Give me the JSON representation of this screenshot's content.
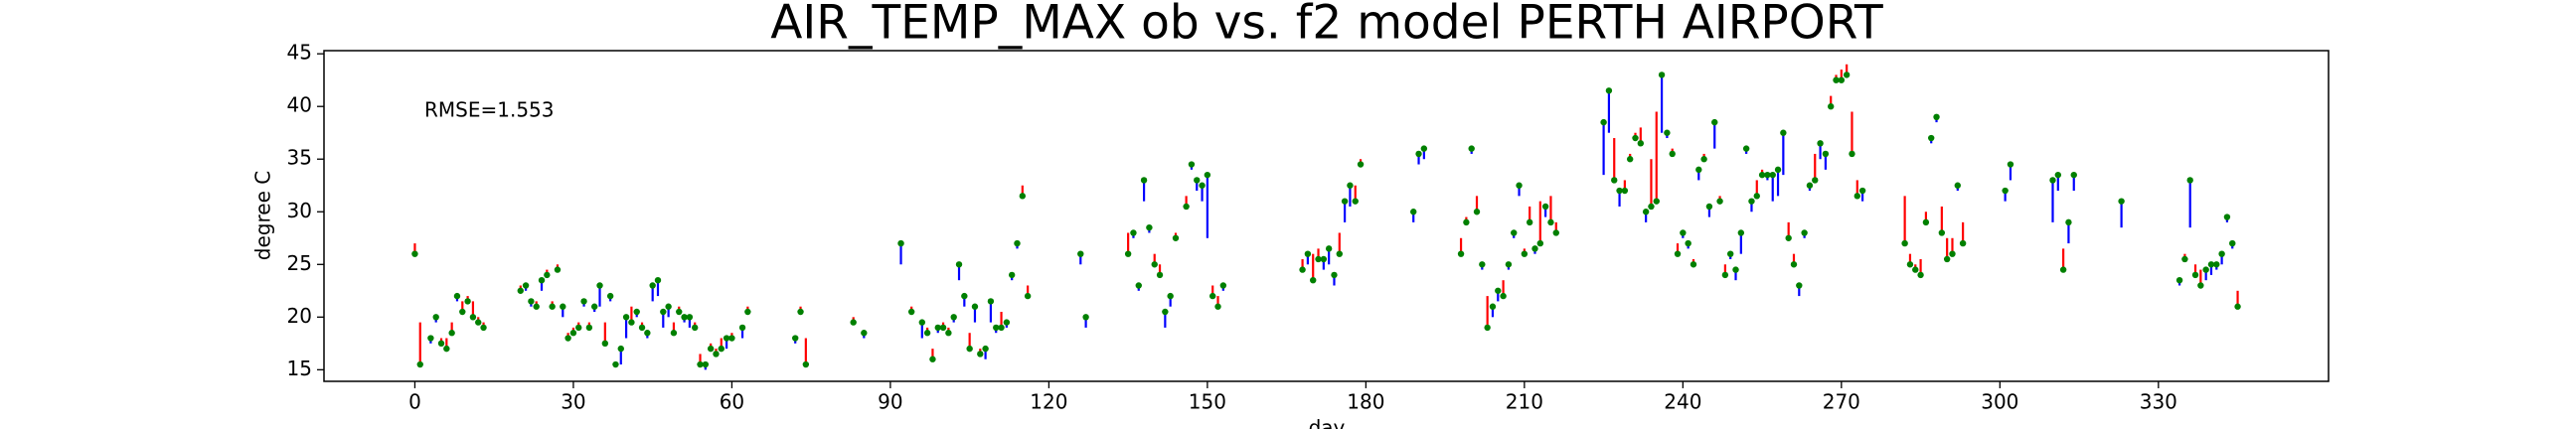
{
  "chart_data": {
    "type": "ob-vs-model",
    "title": "AIR_TEMP_MAX  ob vs. f2  model  PERTH AIRPORT",
    "xlabel": "day",
    "ylabel": "degree C",
    "annotation": "RMSE=1.553",
    "x": [
      0,
      1,
      3,
      4,
      5,
      6,
      7,
      8,
      9,
      10,
      11,
      12,
      13,
      20,
      21,
      22,
      23,
      24,
      25,
      26,
      27,
      28,
      29,
      30,
      31,
      32,
      33,
      34,
      35,
      36,
      37,
      38,
      39,
      40,
      41,
      42,
      43,
      44,
      45,
      46,
      47,
      48,
      49,
      50,
      51,
      52,
      53,
      54,
      55,
      56,
      57,
      58,
      59,
      60,
      62,
      63,
      72,
      73,
      74,
      83,
      85,
      92,
      94,
      96,
      97,
      98,
      99,
      100,
      101,
      102,
      103,
      104,
      105,
      106,
      107,
      108,
      109,
      110,
      111,
      112,
      113,
      114,
      115,
      116,
      126,
      127,
      135,
      136,
      137,
      138,
      139,
      140,
      141,
      142,
      143,
      144,
      146,
      147,
      148,
      149,
      150,
      151,
      152,
      153,
      168,
      169,
      170,
      171,
      172,
      173,
      174,
      175,
      176,
      177,
      178,
      179,
      189,
      190,
      191,
      198,
      199,
      200,
      201,
      202,
      203,
      204,
      205,
      206,
      207,
      208,
      209,
      210,
      211,
      212,
      213,
      214,
      215,
      216,
      225,
      226,
      227,
      228,
      229,
      230,
      231,
      232,
      233,
      234,
      235,
      236,
      237,
      238,
      239,
      240,
      241,
      242,
      243,
      244,
      245,
      246,
      247,
      248,
      249,
      250,
      251,
      252,
      253,
      254,
      255,
      256,
      257,
      258,
      259,
      260,
      261,
      262,
      263,
      264,
      265,
      266,
      267,
      268,
      269,
      270,
      271,
      272,
      273,
      274,
      282,
      283,
      284,
      285,
      286,
      287,
      288,
      289,
      290,
      291,
      292,
      293,
      301,
      302,
      310,
      311,
      312,
      313,
      314,
      323,
      334,
      335,
      336,
      337,
      338,
      339,
      340,
      341,
      342,
      343,
      344,
      345
    ],
    "ob": [
      26,
      15.5,
      18,
      20,
      17.5,
      17,
      18.5,
      22,
      20.5,
      21.5,
      20,
      19.5,
      19,
      22.5,
      23,
      21.5,
      21,
      23.5,
      24,
      21,
      24.5,
      21,
      18,
      18.5,
      19,
      21.5,
      19,
      21,
      23,
      17.5,
      22,
      15.5,
      17,
      20,
      19.5,
      20.5,
      19,
      18.5,
      23,
      23.5,
      20.5,
      21,
      18.5,
      20.5,
      20,
      20,
      19,
      15.5,
      15.5,
      17,
      16.5,
      17,
      18,
      18,
      19,
      20.5,
      18,
      20.5,
      15.5,
      19.5,
      18.5,
      27,
      20.5,
      19.5,
      18.5,
      16,
      19,
      19,
      18.5,
      20,
      25,
      22,
      17,
      21,
      16.5,
      17,
      21.5,
      19,
      19,
      19.5,
      24,
      27,
      31.5,
      22,
      26,
      20,
      26,
      28,
      23,
      33,
      28.5,
      25,
      24,
      20.5,
      22,
      27.5,
      30.5,
      34.5,
      33,
      32.5,
      33.5,
      22,
      21,
      23,
      24.5,
      26,
      23.5,
      25.5,
      25.5,
      26.5,
      24,
      26,
      31,
      32.5,
      31,
      34.5,
      30,
      35.5,
      36,
      26,
      29,
      36,
      30,
      25,
      19,
      21,
      22.5,
      22,
      25,
      28,
      32.5,
      26,
      29,
      26.5,
      27,
      30.5,
      29,
      28,
      38.5,
      41.5,
      33,
      32,
      32,
      35,
      37,
      36.5,
      30,
      30.5,
      31,
      43,
      37.5,
      35.5,
      26,
      28,
      27,
      25,
      34,
      35,
      30.5,
      38.5,
      31,
      24,
      26,
      24.5,
      28,
      36,
      31,
      31.5,
      33.5,
      33.5,
      33.5,
      34,
      37.5,
      27.5,
      25,
      23,
      28,
      32.5,
      33,
      36.5,
      35.5,
      40,
      42.5,
      42.5,
      43,
      35.5,
      31.5,
      32,
      27,
      25,
      24.5,
      24,
      29,
      37,
      39,
      28,
      25.5,
      26,
      32.5,
      27,
      32,
      34.5,
      33,
      33.5,
      24.5,
      29,
      33.5,
      31,
      23.5,
      25.5,
      33,
      24,
      23,
      24.5,
      25,
      25,
      26,
      29.5,
      27,
      21
    ],
    "f2": [
      27,
      19.5,
      17.5,
      19.5,
      18,
      18,
      19.5,
      21.5,
      21.5,
      22,
      21.5,
      20,
      19.5,
      23,
      22.5,
      21,
      21.5,
      22.5,
      24.5,
      21.5,
      25,
      20,
      18.5,
      19,
      19.5,
      21,
      19.5,
      20.5,
      21,
      19.5,
      21.5,
      15.5,
      15.5,
      18,
      21,
      20,
      19.5,
      18,
      21.5,
      22,
      19,
      20,
      19.5,
      21,
      19.5,
      19,
      19.5,
      16.5,
      15,
      17.5,
      17,
      18,
      17,
      18.5,
      18,
      21,
      17.5,
      21,
      18,
      20,
      18,
      25,
      21,
      18,
      19,
      17,
      18.5,
      19.5,
      19,
      19.5,
      23.5,
      21,
      18.5,
      19.5,
      17,
      16,
      19.5,
      18.5,
      20.5,
      19,
      23.5,
      26.5,
      32.5,
      23,
      25,
      19,
      28,
      27.5,
      22.5,
      31,
      28,
      26,
      25,
      19,
      21,
      28,
      31.5,
      34,
      32,
      31,
      27.5,
      23,
      22,
      22.5,
      25.5,
      25,
      26,
      26.5,
      24.5,
      25,
      23,
      28,
      29,
      30.5,
      32.5,
      35,
      29,
      34.5,
      35,
      27.5,
      29.5,
      35.5,
      31.5,
      24.5,
      22,
      20,
      21.5,
      23.5,
      24.5,
      27.5,
      31.5,
      26.5,
      30.5,
      26,
      31,
      29.5,
      31.5,
      29,
      33.5,
      37.5,
      37,
      30.5,
      33,
      35.5,
      37.5,
      38,
      29,
      35,
      39.5,
      37.5,
      37,
      36,
      27,
      27.5,
      26.5,
      25.5,
      33,
      35.5,
      29.5,
      36,
      31.5,
      25,
      25.5,
      23.5,
      26,
      35.5,
      30,
      33,
      34,
      33,
      31,
      31.5,
      33.5,
      29,
      26,
      22,
      27.5,
      32,
      35.5,
      35,
      34,
      41,
      43,
      43.5,
      44,
      39.5,
      33,
      31,
      31.5,
      26,
      25,
      25.5,
      30,
      36.5,
      38.5,
      30.5,
      27.5,
      27.5,
      32,
      29,
      31,
      33,
      29,
      32,
      26.5,
      27,
      32,
      28.5,
      23,
      26,
      28.5,
      25,
      24.5,
      23.5,
      24,
      24.5,
      25,
      29,
      26.5,
      22.5
    ],
    "ob_color": "#008000",
    "f2_above_color": "#ff0000",
    "f2_below_color": "#0000ff",
    "xlim": [
      -17.2,
      362.2
    ],
    "xticks": [
      0,
      30,
      60,
      90,
      120,
      150,
      180,
      210,
      240,
      270,
      300,
      330
    ],
    "ylim": [
      13.9,
      45.3
    ],
    "yticks": [
      15,
      20,
      25,
      30,
      35,
      40,
      45
    ],
    "grid": false
  }
}
